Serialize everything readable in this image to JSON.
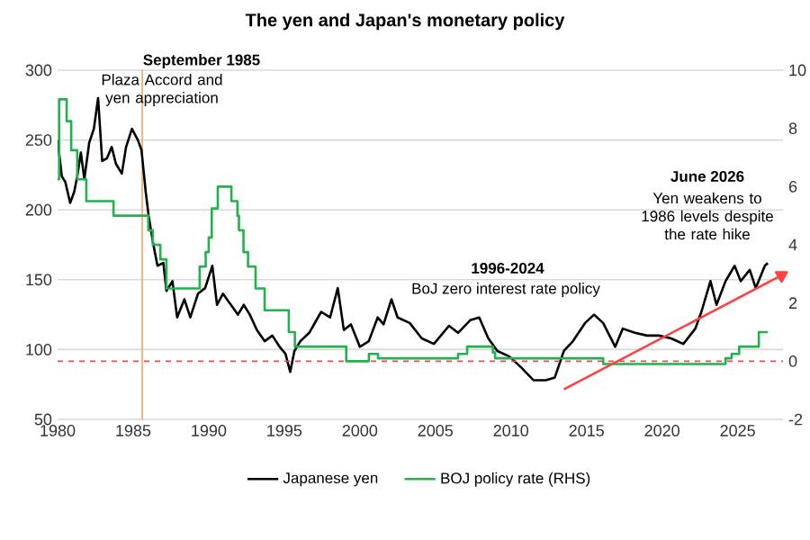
{
  "chart_data": {
    "type": "line",
    "title": "The yen and Japan's monetary policy",
    "annotations": [
      "September 1985",
      "Plaza Accord and yen appreciation",
      "1996-2024",
      "BoJ zero interest rate policy",
      "June 2026",
      "Yen weakens to 1986 levels despite the rate hike"
    ],
    "series": [
      {
        "name": "Japanese yen",
        "color": "#000000",
        "x": [
          1980.0,
          1980.28,
          1980.51,
          1980.83,
          1981.1,
          1981.3,
          1981.54,
          1981.77,
          1982.09,
          1982.4,
          1982.68,
          1982.95,
          1983.27,
          1983.58,
          1983.86,
          1984.25,
          1984.53,
          1984.92,
          1985.31,
          1985.55,
          1985.83,
          1986.02,
          1986.34,
          1986.61,
          1987.0,
          1987.2,
          1987.6,
          1987.91,
          1988.39,
          1988.78,
          1989.29,
          1989.76,
          1990.24,
          1990.55,
          1990.94,
          1991.34,
          1991.93,
          1992.32,
          1992.72,
          1993.19,
          1993.7,
          1994.21,
          1994.69,
          1995.08,
          1995.39,
          1995.67,
          1996.06,
          1996.65,
          1997.44,
          1998.03,
          1998.54,
          1998.94,
          1999.41,
          2000.0,
          2000.59,
          2001.18,
          2001.57,
          2002.09,
          2002.5,
          2003.3,
          2004.1,
          2004.9,
          2005.9,
          2006.5,
          2007.3,
          2007.9,
          2008.5,
          2009.1,
          2009.9,
          2010.7,
          2011.5,
          2012.3,
          2012.9,
          2013.5,
          2014.1,
          2014.9,
          2015.5,
          2016.1,
          2016.9,
          2017.4,
          2018.2,
          2019.0,
          2019.8,
          2020.6,
          2021.4,
          2022.2,
          2022.6,
          2023.2,
          2023.6,
          2024.2,
          2024.8,
          2025.2,
          2025.8,
          2026.2,
          2026.8,
          2027.0
        ],
        "values": [
          250,
          224,
          220,
          205,
          213,
          224,
          241,
          222,
          248,
          258,
          280,
          235,
          237,
          245,
          233,
          226,
          245,
          258,
          250,
          243,
          213,
          196,
          175,
          160,
          162,
          142,
          149,
          123,
          136,
          123,
          140,
          144,
          160,
          132,
          140,
          134,
          125,
          132,
          125,
          114,
          106,
          110,
          102,
          97,
          84,
          99,
          106,
          112,
          127,
          123,
          144,
          114,
          118,
          102,
          106,
          123,
          118,
          136,
          123,
          119,
          108,
          104,
          117,
          112,
          121,
          123,
          108,
          99,
          95,
          87,
          78,
          78,
          80,
          99,
          106,
          119,
          125,
          119,
          102,
          115,
          112,
          110,
          110,
          108,
          104,
          115,
          127,
          149,
          132,
          149,
          160,
          149,
          157,
          144,
          160,
          162
        ]
      },
      {
        "name": "BOJ policy rate (RHS)",
        "color": "#22b14c",
        "type": "step",
        "axis": "y2",
        "x": [
          1980.0,
          1980.1,
          1980.6,
          1980.9,
          1981.3,
          1981.9,
          1983.7,
          1986.0,
          1986.3,
          1986.8,
          1987.2,
          1989.4,
          1989.8,
          1990.0,
          1990.2,
          1990.6,
          1991.5,
          1991.9,
          1992.0,
          1992.3,
          1992.6,
          1993.1,
          1993.7,
          1995.3,
          1995.7,
          1999.1,
          2000.6,
          2001.2,
          2006.5,
          2007.1,
          2008.8,
          2008.95,
          2016.1,
          2024.2,
          2024.6,
          2025.1,
          2026.4,
          2027.0
        ],
        "values": [
          6.25,
          9.0,
          8.25,
          7.25,
          6.25,
          5.5,
          5.0,
          4.5,
          4.0,
          3.5,
          2.5,
          3.25,
          3.75,
          4.25,
          5.25,
          6.0,
          5.5,
          5.0,
          4.5,
          3.75,
          3.25,
          2.5,
          1.75,
          1.0,
          0.5,
          0.0,
          0.25,
          0.1,
          0.25,
          0.5,
          0.3,
          0.1,
          -0.1,
          0.1,
          0.25,
          0.5,
          1.0,
          1.0
        ]
      },
      {
        "color": "#ff4040",
        "marker": "triangle",
        "axis": "y2",
        "x": [
          2013.5,
          2027.9
        ],
        "values": [
          -0.97,
          2.95
        ]
      }
    ],
    "xlim": [
      1980,
      2028
    ],
    "xticks": [
      1980,
      1985,
      1990,
      1995,
      2000,
      2005,
      2010,
      2015,
      2020,
      2025
    ],
    "ylim": [
      50,
      300
    ],
    "yticks": [
      50,
      100,
      150,
      200,
      250,
      300
    ],
    "y2lim": [
      -2,
      10
    ],
    "y2ticks": [
      -2,
      0,
      2,
      4,
      6,
      8,
      10
    ],
    "ref_lines": [
      {
        "axis": "x",
        "value": 1985.6,
        "color": "#f4a460"
      },
      {
        "axis": "y2",
        "value": 0,
        "color": "#e05050",
        "line_style": "dashed"
      }
    ],
    "grid": "y",
    "legend": "bottom"
  }
}
